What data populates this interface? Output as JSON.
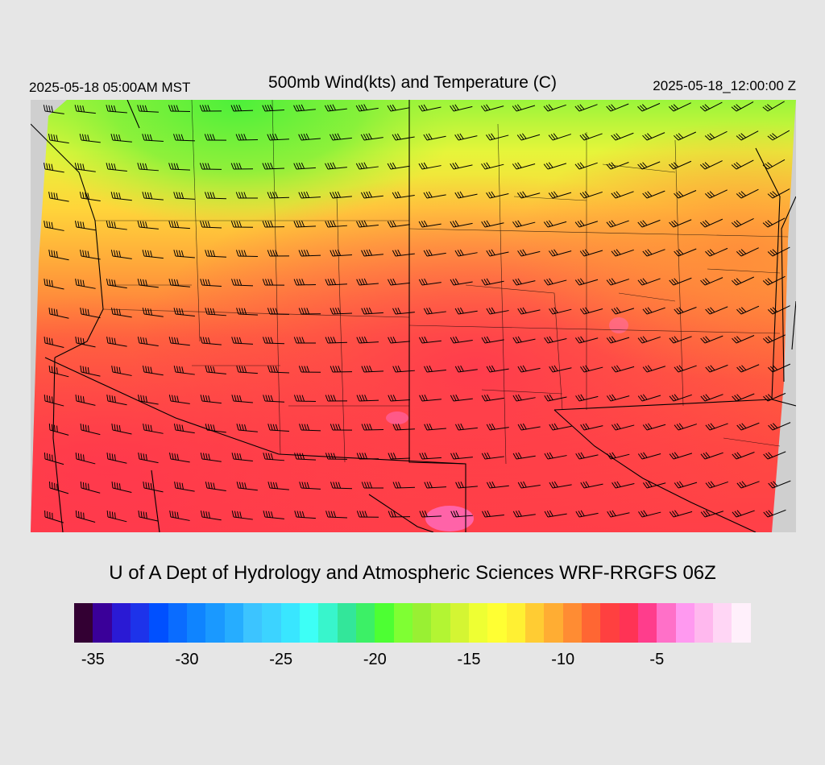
{
  "header": {
    "local_time": "2025-05-18 05:00AM MST",
    "title": "500mb Wind(kts) and Temperature (C)",
    "valid_time": "2025-05-18_12:00:00 Z"
  },
  "credit": "U of A Dept of Hydrology and Atmospheric Sciences WRF-RRGFS 06Z",
  "map": {
    "field": "500mb temperature (C)",
    "overlay": "wind barbs (kts)",
    "no_data_color": "#cfcfcf"
  },
  "colorbar": {
    "colors": [
      "#330033",
      "#3a0099",
      "#2a1ad4",
      "#1d33ea",
      "#0050ff",
      "#0a6cff",
      "#0f84ff",
      "#1a99ff",
      "#26adff",
      "#3cc4ff",
      "#3cd3ff",
      "#39e6ff",
      "#3dfff6",
      "#38f5cc",
      "#33e69a",
      "#3cf066",
      "#4dff33",
      "#7fff33",
      "#99f033",
      "#b3f533",
      "#d4f533",
      "#eeff33",
      "#ffff33",
      "#fff033",
      "#ffcc33",
      "#ffad33",
      "#ff8c33",
      "#ff6633",
      "#ff4040",
      "#ff3355",
      "#ff3d8c",
      "#ff70c8",
      "#ff99f0",
      "#ffb8ee",
      "#ffd6f5",
      "#fff0fb"
    ],
    "ticks": [
      {
        "label": "-35",
        "index": 1
      },
      {
        "label": "-30",
        "index": 6
      },
      {
        "label": "-25",
        "index": 11
      },
      {
        "label": "-20",
        "index": 16
      },
      {
        "label": "-15",
        "index": 21
      },
      {
        "label": "-10",
        "index": 26
      },
      {
        "label": "-5",
        "index": 31
      }
    ]
  }
}
